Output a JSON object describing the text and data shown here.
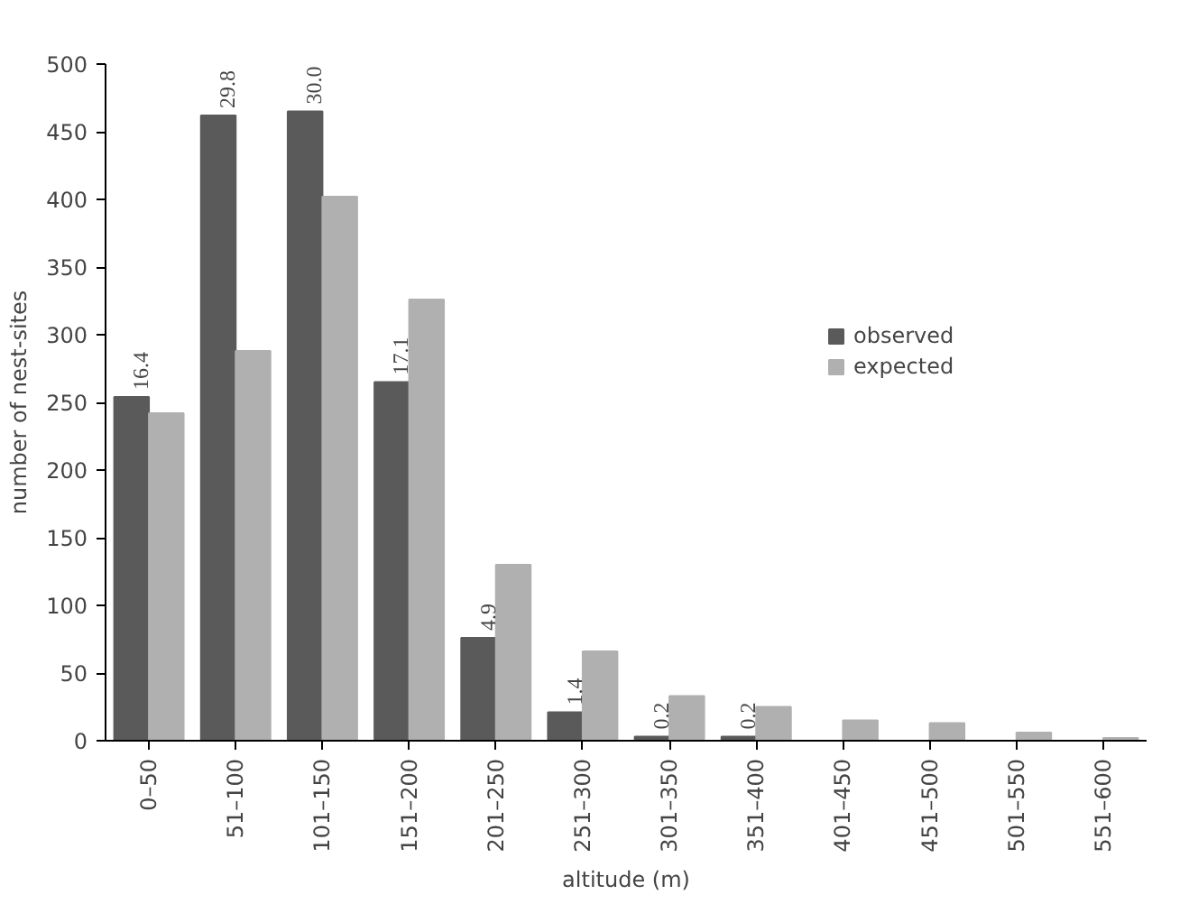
{
  "chart_data": {
    "type": "bar",
    "xlabel": "altitude (m)",
    "ylabel": "number of nest-sites",
    "categories": [
      "0–50",
      "51–100",
      "101–150",
      "151–200",
      "201–250",
      "251–300",
      "301–350",
      "351–400",
      "401–450",
      "451–500",
      "501–550",
      "551–600"
    ],
    "series": [
      {
        "name": "observed",
        "color": "#5a5a5a",
        "values": [
          254,
          462,
          465,
          265,
          76,
          21,
          3,
          3,
          0,
          0,
          0,
          0
        ]
      },
      {
        "name": "expected",
        "color": "#b0b0b0",
        "values": [
          242,
          288,
          402,
          326,
          130,
          66,
          33,
          25,
          15,
          13,
          6,
          2
        ]
      }
    ],
    "annotations": [
      {
        "text": "16.4",
        "x": "0–50",
        "y": 254
      },
      {
        "text": "29.8",
        "x": "51–100",
        "y": 462
      },
      {
        "text": "30.0",
        "x": "101–150",
        "y": 465
      },
      {
        "text": "17.1",
        "x": "151–200",
        "y": 265
      },
      {
        "text": "4.9",
        "x": "201–250",
        "y": 76
      },
      {
        "text": "1.4",
        "x": "251–300",
        "y": 21
      },
      {
        "text": "0.2",
        "x": "301–350",
        "y": 3
      },
      {
        "text": "0.2",
        "x": "351–400",
        "y": 3
      }
    ],
    "ylim": [
      0,
      500
    ],
    "yticks": [
      0,
      50,
      100,
      150,
      200,
      250,
      300,
      350,
      400,
      450,
      500
    ],
    "grid": false,
    "legend": "right"
  }
}
